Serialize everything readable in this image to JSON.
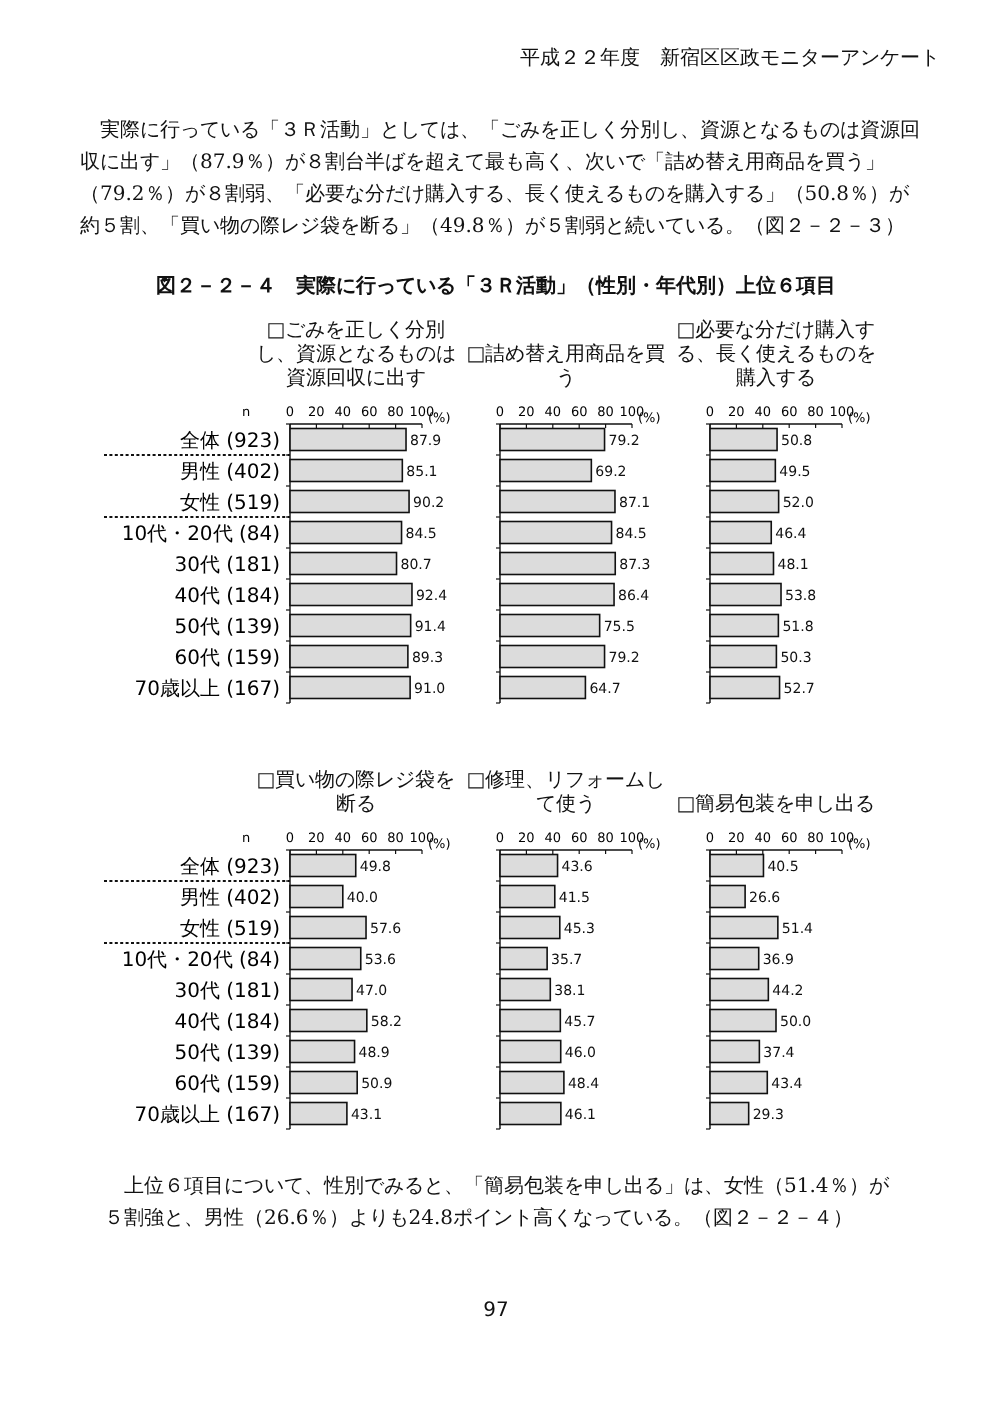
{
  "chart_data": [
    {
      "type": "bar",
      "orientation": "horizontal",
      "title": "□ごみを正しく分別し、資源となるものは資源回収に出す",
      "ylabel": "n",
      "xlabel": "(%)",
      "categories": [
        "全体 (923)",
        "男性 (402)",
        "女性 (519)",
        "10代・20代 (84)",
        "30代 (181)",
        "40代 (184)",
        "50代 (139)",
        "60代 (159)",
        "70歳以上 (167)"
      ],
      "values": [
        87.9,
        85.1,
        90.2,
        84.5,
        80.7,
        92.4,
        91.4,
        89.3,
        91.0
      ],
      "value_labels": [
        "87.9",
        "85.1",
        "90.2",
        "84.5",
        "80.7",
        "92.4",
        "91.4",
        "89.3",
        "91.0"
      ],
      "color": "#dcdcdc",
      "xlim": [
        0,
        100
      ],
      "xticks": [
        0,
        20,
        40,
        60,
        80,
        100
      ],
      "annotations": [
        "平成２２年度　新宿区区政モニターアンケート",
        "実際に行っている「３Ｒ活動」としては、「ごみを正しく分別し、資源となるものは資源回収に出す」（87.9％）が８割台半ばを超えて最も高く、次いで「詰め替え用商品を買う」（79.2％）が８割弱、「必要な分だけ購入する、長く使えるものを購入する」（50.8％）が約５割、「買い物の際レジ袋を断る」（49.8％）が５割弱と続いている。（図２－２－３）",
        "図２－２－４　実際に行っている「３Ｒ活動」（性別・年代別）上位６項目"
      ]
    },
    {
      "type": "bar",
      "orientation": "horizontal",
      "title": "□詰め替え用商品を買う",
      "xlabel": "(%)",
      "categories": [
        null,
        null,
        null,
        null,
        null,
        null,
        null,
        null,
        null
      ],
      "values": [
        79.2,
        69.2,
        87.1,
        84.5,
        87.3,
        86.4,
        75.5,
        79.2,
        64.7
      ],
      "value_labels": [
        "79.2",
        "69.2",
        "87.1",
        "84.5",
        "87.3",
        "86.4",
        "75.5",
        "79.2",
        "64.7"
      ],
      "color": "#dcdcdc",
      "xlim": [
        0,
        100
      ],
      "xticks": [
        0,
        20,
        40,
        60,
        80,
        100
      ]
    },
    {
      "type": "bar",
      "orientation": "horizontal",
      "title": "□必要な分だけ購入する、長く使えるものを購入する",
      "xlabel": "(%)",
      "categories": [
        null,
        null,
        null,
        null,
        null,
        null,
        null,
        null,
        null
      ],
      "values": [
        50.8,
        49.5,
        52.0,
        46.4,
        48.1,
        53.8,
        51.8,
        50.3,
        52.7
      ],
      "value_labels": [
        "50.8",
        "49.5",
        "52.0",
        "46.4",
        "48.1",
        "53.8",
        "51.8",
        "50.3",
        "52.7"
      ],
      "color": "#dcdcdc",
      "xlim": [
        0,
        100
      ],
      "xticks": [
        0,
        20,
        40,
        60,
        80,
        100
      ]
    },
    {
      "type": "bar",
      "orientation": "horizontal",
      "title": "□買い物の際レジ袋を断る",
      "ylabel": "n",
      "xlabel": "(%)",
      "categories": [
        "全体 (923)",
        "男性 (402)",
        "女性 (519)",
        "10代・20代 (84)",
        "30代 (181)",
        "40代 (184)",
        "50代 (139)",
        "60代 (159)",
        "70歳以上 (167)"
      ],
      "values": [
        49.8,
        40.0,
        57.6,
        53.6,
        47.0,
        58.2,
        48.9,
        50.9,
        43.1
      ],
      "value_labels": [
        "49.8",
        "40.0",
        "57.6",
        "53.6",
        "47.0",
        "58.2",
        "48.9",
        "50.9",
        "43.1"
      ],
      "color": "#dcdcdc",
      "xlim": [
        0,
        100
      ],
      "xticks": [
        0,
        20,
        40,
        60,
        80,
        100
      ]
    },
    {
      "type": "bar",
      "orientation": "horizontal",
      "title": "□修理、リフォームして使う",
      "xlabel": "(%)",
      "categories": [
        null,
        null,
        null,
        null,
        null,
        null,
        null,
        null,
        null
      ],
      "values": [
        43.6,
        41.5,
        45.3,
        35.7,
        38.1,
        45.7,
        46.0,
        48.4,
        46.1
      ],
      "value_labels": [
        "43.6",
        "41.5",
        "45.3",
        "35.7",
        "38.1",
        "45.7",
        "46.0",
        "48.4",
        "46.1"
      ],
      "color": "#dcdcdc",
      "xlim": [
        0,
        100
      ],
      "xticks": [
        0,
        20,
        40,
        60,
        80,
        100
      ]
    },
    {
      "type": "bar",
      "orientation": "horizontal",
      "title": "□簡易包装を申し出る",
      "xlabel": "(%)",
      "categories": [
        null,
        null,
        null,
        null,
        null,
        null,
        null,
        null,
        null
      ],
      "values": [
        40.5,
        26.6,
        51.4,
        36.9,
        44.2,
        50.0,
        37.4,
        43.4,
        29.3
      ],
      "value_labels": [
        "40.5",
        "26.6",
        "51.4",
        "36.9",
        "44.2",
        "50.0",
        "37.4",
        "43.4",
        "29.3"
      ],
      "color": "#dcdcdc",
      "xlim": [
        0,
        100
      ],
      "xticks": [
        0,
        20,
        40,
        60,
        80,
        100
      ],
      "annotations": [
        "上位６項目について、性別でみると、「簡易包装を申し出る」は、女性（51.4％）が５割強と、男性（26.6％）よりも24.8ポイント高くなっている。（図２－２－４）",
        "97"
      ]
    }
  ]
}
